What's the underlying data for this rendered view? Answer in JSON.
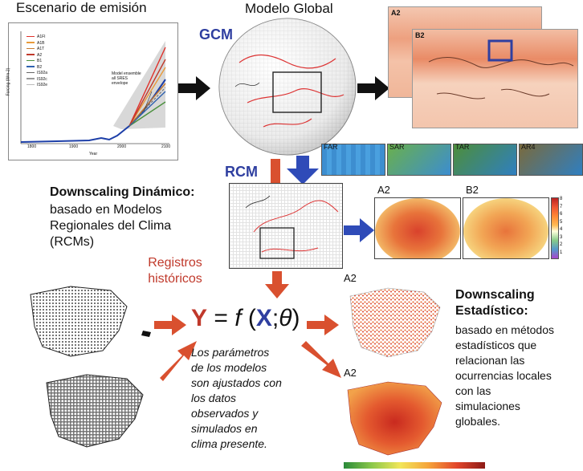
{
  "emission": {
    "title": "Escenario de emisión",
    "legend": [
      "A1FI",
      "A1B",
      "A1T",
      "A2",
      "B1",
      "B2",
      "IS92a",
      "IS92c",
      "IS92e"
    ],
    "legend_colors": [
      "#e0302a",
      "#e89a3a",
      "#c77b2f",
      "#c0392b",
      "#4a8f3c",
      "#2f61b0",
      "#666666",
      "#999999",
      "#bbbbbb"
    ],
    "x_ticks": [
      "1800",
      "1900",
      "2000",
      "2100"
    ],
    "xlabel": "Year",
    "ylabel": "Forcing (Wm-2)",
    "annotation": "Model ensemble all SRES envelope"
  },
  "global": {
    "title": "Modelo Global",
    "gcm": "GCM",
    "map_labels": [
      "A2",
      "B2"
    ]
  },
  "resolutions": [
    "FAR",
    "SAR",
    "TAR",
    "AR4"
  ],
  "rcm": {
    "label": "RCM",
    "downscaling_title": "Downscaling Dinámico:",
    "downscaling_desc": [
      "basado en Modelos",
      "Regionales del Clima",
      "(RCMs)"
    ],
    "maps": [
      "A2",
      "B2"
    ],
    "scale": [
      "8",
      "7",
      "6",
      "5",
      "4",
      "3",
      "2",
      "1"
    ]
  },
  "registros": [
    "Registros",
    "históricos"
  ],
  "formula": {
    "y": "Y",
    "eq": "= ",
    "f": "f",
    "open": " (",
    "x": "X",
    "sep": ";",
    "theta": "θ",
    "close": ")"
  },
  "params_text": [
    "Los parámetros",
    "de los modelos",
    "son ajustados con",
    "los datos",
    "observados y",
    "simulados en",
    "clima presente."
  ],
  "statistical": {
    "title": [
      "Downscaling",
      "Estadístico:"
    ],
    "desc": [
      "basado en métodos",
      "estadísticos que",
      "relacionan las",
      "ocurrencias locales",
      "con las",
      "simulaciones",
      "globales."
    ],
    "maps": [
      "A2",
      "A2"
    ]
  },
  "colors": {
    "blue_label": "#2f3fa0",
    "red_label": "#c0392b",
    "arrow_red": "#d9502f",
    "arrow_blue": "#2f4bb8",
    "arrow_black": "#111111"
  }
}
